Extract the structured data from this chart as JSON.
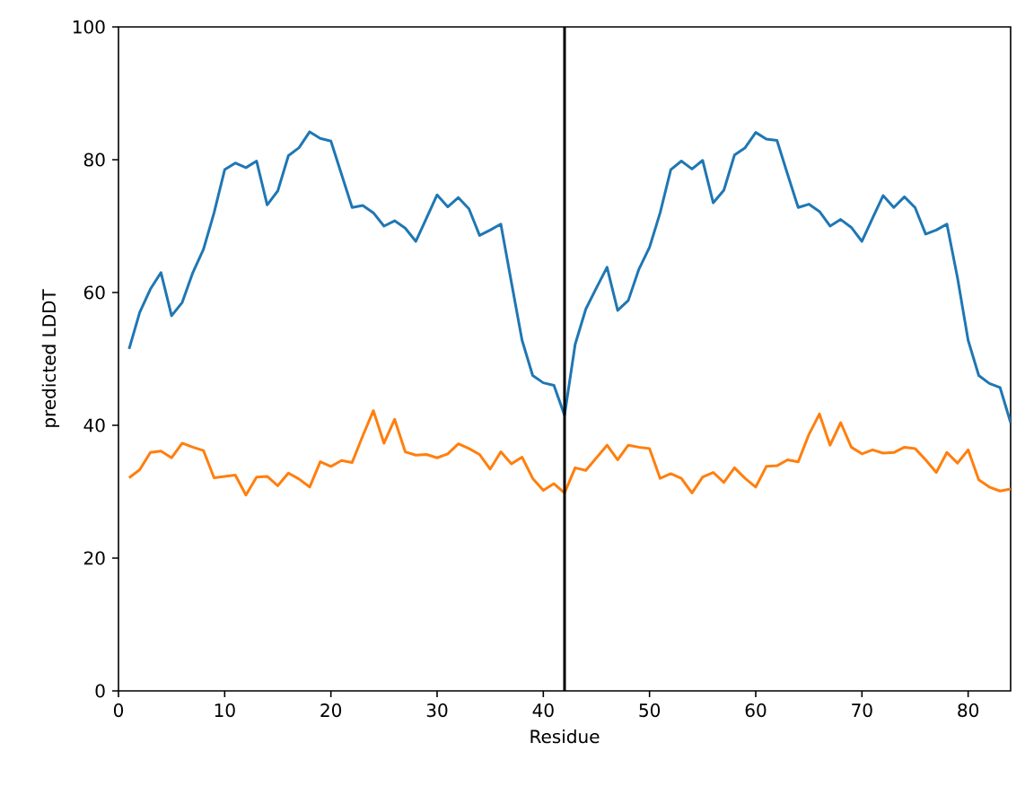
{
  "chart_data": {
    "type": "line",
    "xlabel": "Residue",
    "ylabel": "predicted LDDT",
    "x": [
      1,
      2,
      3,
      4,
      5,
      6,
      7,
      8,
      9,
      10,
      11,
      12,
      13,
      14,
      15,
      16,
      17,
      18,
      19,
      20,
      21,
      22,
      23,
      24,
      25,
      26,
      27,
      28,
      29,
      30,
      31,
      32,
      33,
      34,
      35,
      36,
      37,
      38,
      39,
      40,
      41,
      42,
      43,
      44,
      45,
      46,
      47,
      48,
      49,
      50,
      51,
      52,
      53,
      54,
      55,
      56,
      57,
      58,
      59,
      60,
      61,
      62,
      63,
      64,
      65,
      66,
      67,
      68,
      69,
      70,
      71,
      72,
      73,
      74,
      75,
      76,
      77,
      78,
      79,
      80,
      81,
      82,
      83,
      84
    ],
    "series": [
      {
        "color": "#1f77b4",
        "values": [
          51.5,
          57,
          60.5,
          63,
          56.5,
          58.5,
          63,
          66.5,
          72,
          78.5,
          79.5,
          78.8,
          79.8,
          73.2,
          75.3,
          80.6,
          81.8,
          84.2,
          83.2,
          82.8,
          77.8,
          72.8,
          73.1,
          72,
          70,
          70.8,
          69.7,
          67.7,
          71.2,
          74.7,
          72.9,
          74.3,
          72.6,
          68.6,
          69.4,
          70.3,
          61.5,
          52.8,
          47.5,
          46.4,
          46,
          41.5,
          52.2,
          57.5,
          60.7,
          63.8,
          57.3,
          58.8,
          63.5,
          66.8,
          72,
          78.5,
          79.8,
          78.6,
          79.9,
          73.5,
          75.4,
          80.7,
          81.8,
          84.1,
          83.1,
          82.9,
          77.8,
          72.8,
          73.3,
          72.2,
          70,
          71,
          69.8,
          67.7,
          71.2,
          74.6,
          72.8,
          74.4,
          72.8,
          68.8,
          69.4,
          70.3,
          62.2,
          52.8,
          47.5,
          46.3,
          45.7,
          40.4
        ]
      },
      {
        "color": "#ff7f0e",
        "values": [
          32.1,
          33.3,
          35.9,
          36.1,
          35.1,
          37.3,
          36.7,
          36.2,
          32.1,
          32.3,
          32.5,
          29.5,
          32.2,
          32.3,
          30.9,
          32.8,
          31.9,
          30.7,
          34.5,
          33.8,
          34.7,
          34.4,
          38.4,
          42.2,
          37.3,
          40.9,
          36,
          35.5,
          35.6,
          35.1,
          35.7,
          37.2,
          36.5,
          35.6,
          33.4,
          36,
          34.2,
          35.2,
          32,
          30.2,
          31.2,
          29.8,
          33.6,
          33.2,
          35.1,
          37,
          34.8,
          37,
          36.7,
          36.5,
          32,
          32.7,
          32,
          29.8,
          32.2,
          32.9,
          31.4,
          33.6,
          32,
          30.7,
          33.8,
          33.9,
          34.8,
          34.5,
          38.6,
          41.7,
          37,
          40.4,
          36.7,
          35.7,
          36.3,
          35.8,
          35.9,
          36.7,
          36.5,
          34.8,
          32.9,
          35.9,
          34.3,
          36.3,
          31.8,
          30.7,
          30.1,
          30.4
        ]
      }
    ],
    "xlim": [
      0,
      84
    ],
    "xticks": [
      0,
      10,
      20,
      30,
      40,
      50,
      60,
      70,
      80
    ],
    "ylim": [
      0,
      100
    ],
    "yticks": [
      0,
      20,
      40,
      60,
      80,
      100
    ],
    "grid": false,
    "ref_lines": [
      {
        "axis": "x",
        "value": 42,
        "color": "#000000"
      }
    ]
  }
}
